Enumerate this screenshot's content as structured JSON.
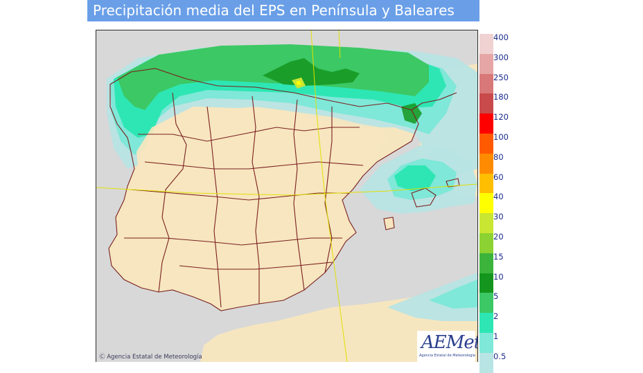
{
  "title": "Precipitación media del EPS en Península y Baleares",
  "copyright": "Agencia Estatal de Meteorología",
  "copyright_symbol": "Ⓒ",
  "logo": {
    "name": "AEMet",
    "subtitle": "Agencia Estatal de Meteorología"
  },
  "legend": [
    {
      "label": "400",
      "color": "#f0d2d2"
    },
    {
      "label": "300",
      "color": "#e6a6a6"
    },
    {
      "label": "250",
      "color": "#d97878"
    },
    {
      "label": "180",
      "color": "#c84a4a"
    },
    {
      "label": "120",
      "color": "#ff0000"
    },
    {
      "label": "100",
      "color": "#ff5a00"
    },
    {
      "label": "80",
      "color": "#ff8c00"
    },
    {
      "label": "60",
      "color": "#ffbe00"
    },
    {
      "label": "40",
      "color": "#ffff00"
    },
    {
      "label": "30",
      "color": "#c8e632"
    },
    {
      "label": "20",
      "color": "#8cd232"
    },
    {
      "label": "15",
      "color": "#3cb43c"
    },
    {
      "label": "10",
      "color": "#14961e"
    },
    {
      "label": "5",
      "color": "#3cc864"
    },
    {
      "label": "2",
      "color": "#2ee6b4"
    },
    {
      "label": "1",
      "color": "#7fe8d8"
    },
    {
      "label": "0.5",
      "color": "#b8e4e4"
    }
  ],
  "colors": {
    "sea": "#d8d8d8",
    "land": "#f6e6bf",
    "borders": "#7a1e1e",
    "grid": "#e0e000"
  }
}
